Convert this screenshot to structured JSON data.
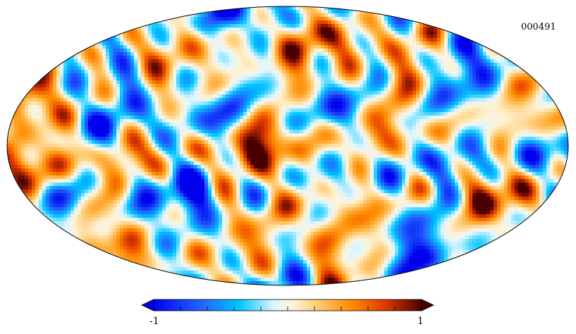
{
  "map": {
    "identifier": "000491",
    "projection": "mollweide",
    "field": "random-gaussian-anisotropic"
  },
  "colorbar": {
    "min_label": "-1",
    "max_label": "1",
    "min_value": -1,
    "max_value": 1,
    "tick_count": 10,
    "colors": [
      "#0000ff",
      "#1f6fff",
      "#3aa0ff",
      "#00d4ff",
      "#ffffff",
      "#ffd79a",
      "#ff9e00",
      "#ff5a00",
      "#c41e00",
      "#5a0000"
    ]
  }
}
